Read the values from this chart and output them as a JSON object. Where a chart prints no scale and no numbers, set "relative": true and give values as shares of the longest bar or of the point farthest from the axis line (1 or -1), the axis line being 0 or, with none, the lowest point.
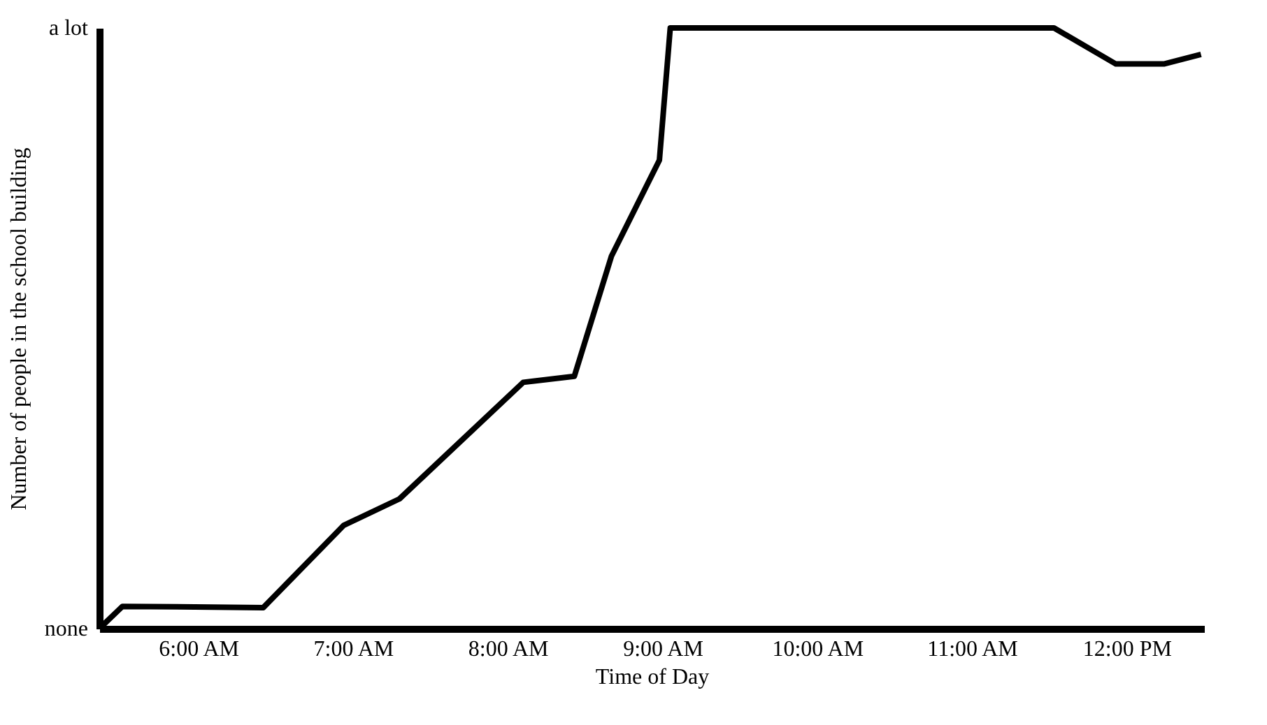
{
  "chart_data": {
    "type": "line",
    "xlabel": "Time of Day",
    "ylabel": "Number of people in the school building",
    "relative": true,
    "x": [
      5.36,
      5.51,
      6.42,
      6.94,
      7.3,
      8.1,
      8.43,
      8.67,
      8.98,
      9.05,
      11.53,
      11.93,
      12.24,
      12.48
    ],
    "series": [
      {
        "color": "#000000",
        "values": [
          0,
          0.037,
          0.035,
          0.172,
          0.216,
          0.41,
          0.42,
          0.62,
          0.78,
          1.0,
          1.0,
          0.94,
          0.94,
          0.956
        ]
      }
    ],
    "xlim": [
      5.36,
      12.5
    ],
    "xticks": [
      {
        "value": 6,
        "label": "6:00 AM"
      },
      {
        "value": 7,
        "label": "7:00 AM"
      },
      {
        "value": 8,
        "label": "8:00 AM"
      },
      {
        "value": 9,
        "label": "9:00 AM"
      },
      {
        "value": 10,
        "label": "10:00 AM"
      },
      {
        "value": 11,
        "label": "11:00 AM"
      },
      {
        "value": 12,
        "label": "12:00 PM"
      }
    ],
    "annotations": [
      "none",
      "a lot"
    ],
    "grid": false,
    "marker": "none",
    "line_style": "solid"
  }
}
